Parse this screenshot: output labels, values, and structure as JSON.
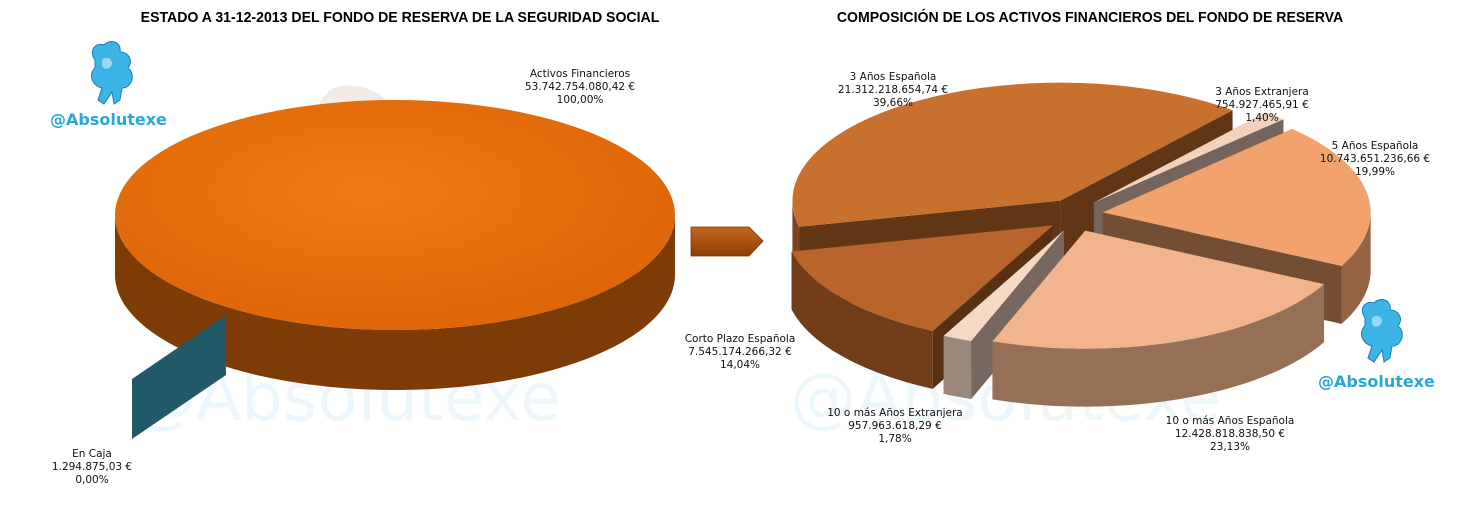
{
  "colors": {
    "brand": "#28a6de"
  },
  "watermark": {
    "handle": "@Absolutexe"
  },
  "chart_data": [
    {
      "type": "pie",
      "title": "ESTADO A 31-12-2013 DEL FONDO DE RESERVA DE LA SEGURIDAD SOCIAL",
      "slices": [
        {
          "name": "Activos Financieros",
          "amount": "53.742.754.080,42 €",
          "percent": "100,00%",
          "value": 53742754080.42,
          "color": "#e36c0a"
        },
        {
          "name": "En Caja",
          "amount": "1.294.875,03 €",
          "percent": "0,00%",
          "value": 1294875.03,
          "color": "#215968"
        }
      ]
    },
    {
      "type": "pie",
      "title": "COMPOSICIÓN DE LOS ACTIVOS FINANCIEROS DEL FONDO DE RESERVA",
      "slices": [
        {
          "name": "3 Años Española",
          "amount": "21.312.218.654,74 €",
          "percent": "39,66%",
          "value": 39.66,
          "color": "#c8702e"
        },
        {
          "name": "3 Años Extranjera",
          "amount": "754.927.465,91 €",
          "percent": "1,40%",
          "value": 1.4,
          "color": "#f2d1bd"
        },
        {
          "name": "5 Años Española",
          "amount": "10.743.651.236,66 €",
          "percent": "19,99%",
          "value": 19.99,
          "color": "#f2a26c"
        },
        {
          "name": "10 o más Años Española",
          "amount": "12.428.818.838,50 €",
          "percent": "23,13%",
          "value": 23.13,
          "color": "#f1b48c"
        },
        {
          "name": "10 o más Años Extranjera",
          "amount": "957.963.618,29 €",
          "percent": "1,78%",
          "value": 1.78,
          "color": "#f6d9c5"
        },
        {
          "name": "Corto Plazo  Española",
          "amount": "7.545.174.266,32 €",
          "percent": "14,04%",
          "value": 14.04,
          "color": "#b8642a"
        }
      ]
    }
  ]
}
